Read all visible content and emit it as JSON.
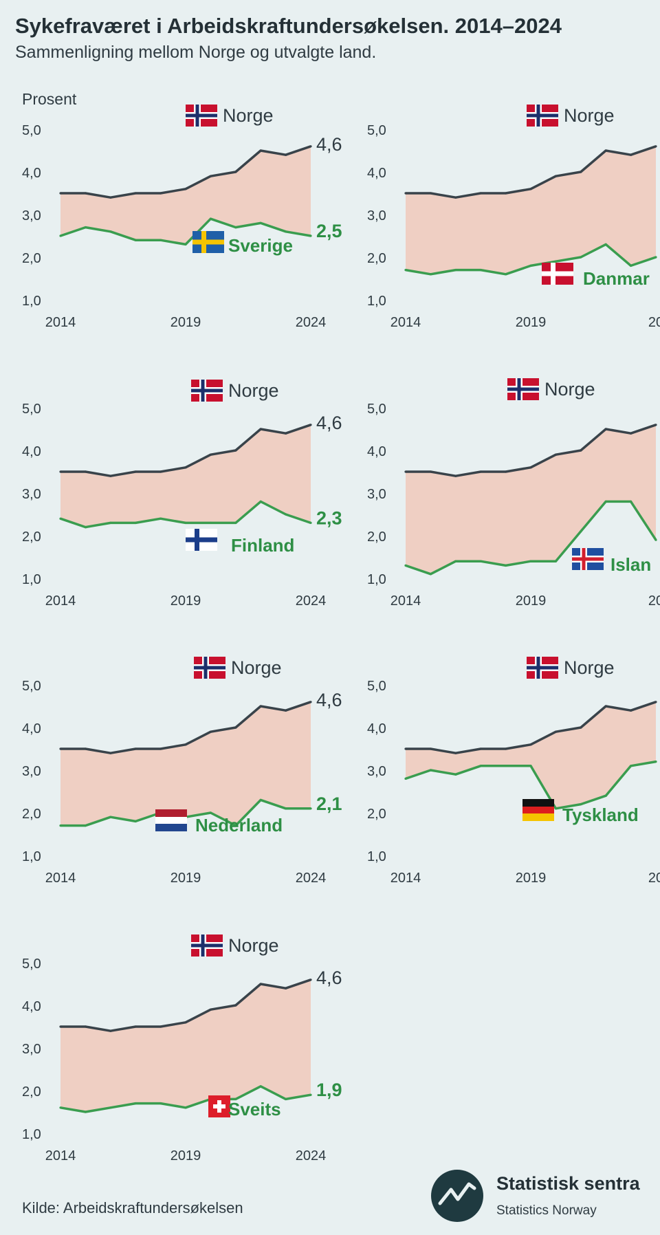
{
  "title": "Sykefraværet i Arbeidskraftundersøkelsen. 2014–2024",
  "subtitle": "Sammenligning mellom Norge og utvalgte land.",
  "source": "Kilde: Arbeidskraftundersøkelsen",
  "logo": {
    "name": "Statistisk sentra",
    "sub": "Statistics Norway",
    "icon": "ssb-logo-icon"
  },
  "colors": {
    "norway_line": "#39434a",
    "country_line": "#3a9d4f",
    "fill": "#efcfc3",
    "country_label": "#2e8f45",
    "background": "#e8f0f1"
  },
  "chart_data": [
    {
      "type": "area",
      "ylabel": "Prosent",
      "ylim": [
        1.0,
        5.0
      ],
      "yticks": [
        "5,0",
        "4,0",
        "3,0",
        "2,0",
        "1,0"
      ],
      "xticks": [
        "2014",
        "2019",
        "2024"
      ],
      "x": [
        2014,
        2015,
        2016,
        2017,
        2018,
        2019,
        2020,
        2021,
        2022,
        2023,
        2024
      ],
      "series": [
        {
          "name": "Norge",
          "icon": "norway-flag-icon",
          "end_label": "4,6",
          "values": [
            3.5,
            3.5,
            3.4,
            3.5,
            3.5,
            3.6,
            3.9,
            4.0,
            4.5,
            4.4,
            4.6
          ]
        },
        {
          "name": "Sverige",
          "icon": "sweden-flag-icon",
          "end_label": "2,5",
          "values": [
            2.5,
            2.7,
            2.6,
            2.4,
            2.4,
            2.3,
            2.9,
            2.7,
            2.8,
            2.6,
            2.5
          ]
        }
      ]
    },
    {
      "type": "area",
      "ylim": [
        1.0,
        5.0
      ],
      "yticks": [
        "5,0",
        "4,0",
        "3,0",
        "2,0",
        "1,0"
      ],
      "xticks": [
        "2014",
        "2019",
        "20"
      ],
      "x": [
        2014,
        2015,
        2016,
        2017,
        2018,
        2019,
        2020,
        2021,
        2022,
        2023,
        2024
      ],
      "series": [
        {
          "name": "Norge",
          "icon": "norway-flag-icon",
          "values": [
            3.5,
            3.5,
            3.4,
            3.5,
            3.5,
            3.6,
            3.9,
            4.0,
            4.5,
            4.4,
            4.6
          ]
        },
        {
          "name": "Danmar",
          "icon": "denmark-flag-icon",
          "values": [
            1.7,
            1.6,
            1.7,
            1.7,
            1.6,
            1.8,
            1.9,
            2.0,
            2.3,
            1.8,
            2.0
          ]
        }
      ]
    },
    {
      "type": "area",
      "ylim": [
        1.0,
        5.0
      ],
      "yticks": [
        "5,0",
        "4,0",
        "3,0",
        "2,0",
        "1,0"
      ],
      "xticks": [
        "2014",
        "2019",
        "2024"
      ],
      "x": [
        2014,
        2015,
        2016,
        2017,
        2018,
        2019,
        2020,
        2021,
        2022,
        2023,
        2024
      ],
      "series": [
        {
          "name": "Norge",
          "icon": "norway-flag-icon",
          "end_label": "4,6",
          "values": [
            3.5,
            3.5,
            3.4,
            3.5,
            3.5,
            3.6,
            3.9,
            4.0,
            4.5,
            4.4,
            4.6
          ]
        },
        {
          "name": "Finland",
          "icon": "finland-flag-icon",
          "end_label": "2,3",
          "values": [
            2.4,
            2.2,
            2.3,
            2.3,
            2.4,
            2.3,
            2.3,
            2.3,
            2.8,
            2.5,
            2.3
          ]
        }
      ]
    },
    {
      "type": "area",
      "ylim": [
        1.0,
        5.0
      ],
      "yticks": [
        "5,0",
        "4,0",
        "3,0",
        "2,0",
        "1,0"
      ],
      "xticks": [
        "2014",
        "2019",
        "20"
      ],
      "x": [
        2014,
        2015,
        2016,
        2017,
        2018,
        2019,
        2020,
        2021,
        2022,
        2023,
        2024
      ],
      "series": [
        {
          "name": "Norge",
          "icon": "norway-flag-icon",
          "values": [
            3.5,
            3.5,
            3.4,
            3.5,
            3.5,
            3.6,
            3.9,
            4.0,
            4.5,
            4.4,
            4.6
          ]
        },
        {
          "name": "Islan",
          "icon": "iceland-flag-icon",
          "values": [
            1.3,
            1.1,
            1.4,
            1.4,
            1.3,
            1.4,
            1.4,
            2.1,
            2.8,
            2.8,
            1.9
          ]
        }
      ]
    },
    {
      "type": "area",
      "ylim": [
        1.0,
        5.0
      ],
      "yticks": [
        "5,0",
        "4,0",
        "3,0",
        "2,0",
        "1,0"
      ],
      "xticks": [
        "2014",
        "2019",
        "2024"
      ],
      "x": [
        2014,
        2015,
        2016,
        2017,
        2018,
        2019,
        2020,
        2021,
        2022,
        2023,
        2024
      ],
      "series": [
        {
          "name": "Norge",
          "icon": "norway-flag-icon",
          "end_label": "4,6",
          "values": [
            3.5,
            3.5,
            3.4,
            3.5,
            3.5,
            3.6,
            3.9,
            4.0,
            4.5,
            4.4,
            4.6
          ]
        },
        {
          "name": "Nederland",
          "icon": "netherlands-flag-icon",
          "end_label": "2,1",
          "values": [
            1.7,
            1.7,
            1.9,
            1.8,
            2.0,
            1.9,
            2.0,
            1.7,
            2.3,
            2.1,
            2.1
          ]
        }
      ]
    },
    {
      "type": "area",
      "ylim": [
        1.0,
        5.0
      ],
      "yticks": [
        "5,0",
        "4,0",
        "3,0",
        "2,0",
        "1,0"
      ],
      "xticks": [
        "2014",
        "2019",
        "20"
      ],
      "x": [
        2014,
        2015,
        2016,
        2017,
        2018,
        2019,
        2020,
        2021,
        2022,
        2023,
        2024
      ],
      "series": [
        {
          "name": "Norge",
          "icon": "norway-flag-icon",
          "values": [
            3.5,
            3.5,
            3.4,
            3.5,
            3.5,
            3.6,
            3.9,
            4.0,
            4.5,
            4.4,
            4.6
          ]
        },
        {
          "name": "Tyskland",
          "icon": "germany-flag-icon",
          "values": [
            2.8,
            3.0,
            2.9,
            3.1,
            3.1,
            3.1,
            2.1,
            2.2,
            2.4,
            3.1,
            3.2
          ]
        }
      ]
    },
    {
      "type": "area",
      "ylim": [
        1.0,
        5.0
      ],
      "yticks": [
        "5,0",
        "4,0",
        "3,0",
        "2,0",
        "1,0"
      ],
      "xticks": [
        "2014",
        "2019",
        "2024"
      ],
      "x": [
        2014,
        2015,
        2016,
        2017,
        2018,
        2019,
        2020,
        2021,
        2022,
        2023,
        2024
      ],
      "series": [
        {
          "name": "Norge",
          "icon": "norway-flag-icon",
          "end_label": "4,6",
          "values": [
            3.5,
            3.5,
            3.4,
            3.5,
            3.5,
            3.6,
            3.9,
            4.0,
            4.5,
            4.4,
            4.6
          ]
        },
        {
          "name": "Sveits",
          "icon": "switzerland-flag-icon",
          "end_label": "1,9",
          "values": [
            1.6,
            1.5,
            1.6,
            1.7,
            1.7,
            1.6,
            1.8,
            1.8,
            2.1,
            1.8,
            1.9
          ]
        }
      ]
    }
  ]
}
